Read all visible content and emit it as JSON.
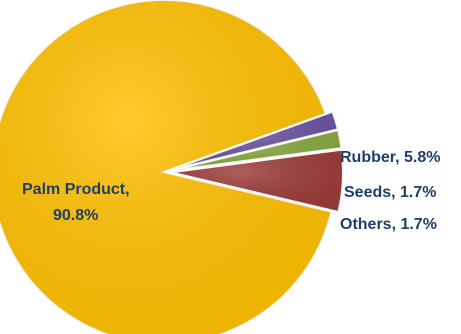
{
  "chart_data": {
    "type": "pie",
    "title": "",
    "slices": [
      {
        "name": "Palm Product",
        "value": 90.8,
        "label_line1": "Palm Product,",
        "label_line2": "90.8%",
        "color": "#FFC000"
      },
      {
        "name": "Rubber",
        "value": 5.8,
        "label": "Rubber, 5.8%",
        "color": "#9B3B38"
      },
      {
        "name": "Seeds",
        "value": 1.7,
        "label": "Seeds, 1.7%",
        "color": "#86A83D"
      },
      {
        "name": "Others",
        "value": 1.7,
        "label": "Others, 1.7%",
        "color": "#6A52A0"
      }
    ],
    "start_angle_deg": -19.8,
    "direction": "counterclockwise",
    "exploded_slices": [
      "Rubber",
      "Seeds",
      "Others"
    ],
    "data_labels": "category name and percentage",
    "legend": "none"
  }
}
